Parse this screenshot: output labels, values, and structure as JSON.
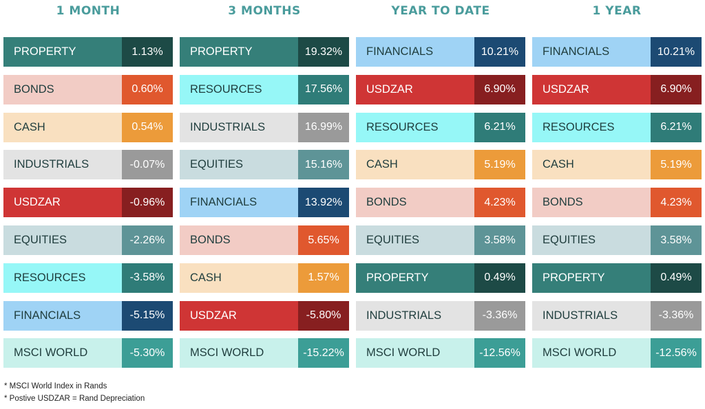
{
  "colors": {
    "PROPERTY": {
      "light": "#357f79",
      "dark": "#1d4a46",
      "light_text": "#ffffff"
    },
    "BONDS": {
      "light": "#f2ccc5",
      "dark": "#e0582e",
      "light_text": "#1f3d3d"
    },
    "CASH": {
      "light": "#f9e0c0",
      "dark": "#ec9b3a",
      "light_text": "#1f3d3d"
    },
    "INDUSTRIALS": {
      "light": "#e3e3e3",
      "dark": "#9a9a9a",
      "light_text": "#1f3d3d"
    },
    "USDZAR": {
      "light": "#cf3535",
      "dark": "#871f20",
      "light_text": "#ffffff"
    },
    "EQUITIES": {
      "light": "#c9dcdf",
      "dark": "#5e9497",
      "light_text": "#1f3d3d"
    },
    "RESOURCES": {
      "light": "#96f7f7",
      "dark": "#2f7c78",
      "light_text": "#1f3d3d"
    },
    "FINANCIALS": {
      "light": "#9fd3f5",
      "dark": "#1c4a73",
      "light_text": "#1f3d3d"
    },
    "MSCI WORLD": {
      "light": "#c8f1eb",
      "dark": "#3c9e96",
      "light_text": "#1f3d3d"
    }
  },
  "chart_data": {
    "type": "table",
    "columns": [
      {
        "title": "1 MONTH",
        "rows": [
          {
            "category": "PROPERTY",
            "value": "1.13%"
          },
          {
            "category": "BONDS",
            "value": "0.60%"
          },
          {
            "category": "CASH",
            "value": "0.54%"
          },
          {
            "category": "INDUSTRIALS",
            "value": "-0.07%"
          },
          {
            "category": "USDZAR",
            "value": "-0.96%"
          },
          {
            "category": "EQUITIES",
            "value": "-2.26%"
          },
          {
            "category": "RESOURCES",
            "value": "-3.58%"
          },
          {
            "category": "FINANCIALS",
            "value": "-5.15%"
          },
          {
            "category": "MSCI WORLD",
            "value": "-5.30%"
          }
        ]
      },
      {
        "title": "3 MONTHS",
        "rows": [
          {
            "category": "PROPERTY",
            "value": "19.32%"
          },
          {
            "category": "RESOURCES",
            "value": "17.56%"
          },
          {
            "category": "INDUSTRIALS",
            "value": "16.99%"
          },
          {
            "category": "EQUITIES",
            "value": "15.16%"
          },
          {
            "category": "FINANCIALS",
            "value": "13.92%"
          },
          {
            "category": "BONDS",
            "value": "5.65%"
          },
          {
            "category": "CASH",
            "value": "1.57%"
          },
          {
            "category": "USDZAR",
            "value": "-5.80%"
          },
          {
            "category": "MSCI WORLD",
            "value": "-15.22%"
          }
        ]
      },
      {
        "title": "YEAR TO DATE",
        "rows": [
          {
            "category": "FINANCIALS",
            "value": "10.21%"
          },
          {
            "category": "USDZAR",
            "value": "6.90%"
          },
          {
            "category": "RESOURCES",
            "value": "6.21%"
          },
          {
            "category": "CASH",
            "value": "5.19%"
          },
          {
            "category": "BONDS",
            "value": "4.23%"
          },
          {
            "category": "EQUITIES",
            "value": "3.58%"
          },
          {
            "category": "PROPERTY",
            "value": "0.49%"
          },
          {
            "category": "INDUSTRIALS",
            "value": "-3.36%"
          },
          {
            "category": "MSCI WORLD",
            "value": "-12.56%"
          }
        ]
      },
      {
        "title": "1 YEAR",
        "rows": [
          {
            "category": "FINANCIALS",
            "value": "10.21%"
          },
          {
            "category": "USDZAR",
            "value": "6.90%"
          },
          {
            "category": "RESOURCES",
            "value": "6.21%"
          },
          {
            "category": "CASH",
            "value": "5.19%"
          },
          {
            "category": "BONDS",
            "value": "4.23%"
          },
          {
            "category": "EQUITIES",
            "value": "3.58%"
          },
          {
            "category": "PROPERTY",
            "value": "0.49%"
          },
          {
            "category": "INDUSTRIALS",
            "value": "-3.36%"
          },
          {
            "category": "MSCI WORLD",
            "value": "-12.56%"
          }
        ]
      }
    ]
  },
  "footnotes": [
    "* MSCI World Index in  Rands",
    "* Postive USDZAR = Rand Depreciation"
  ]
}
